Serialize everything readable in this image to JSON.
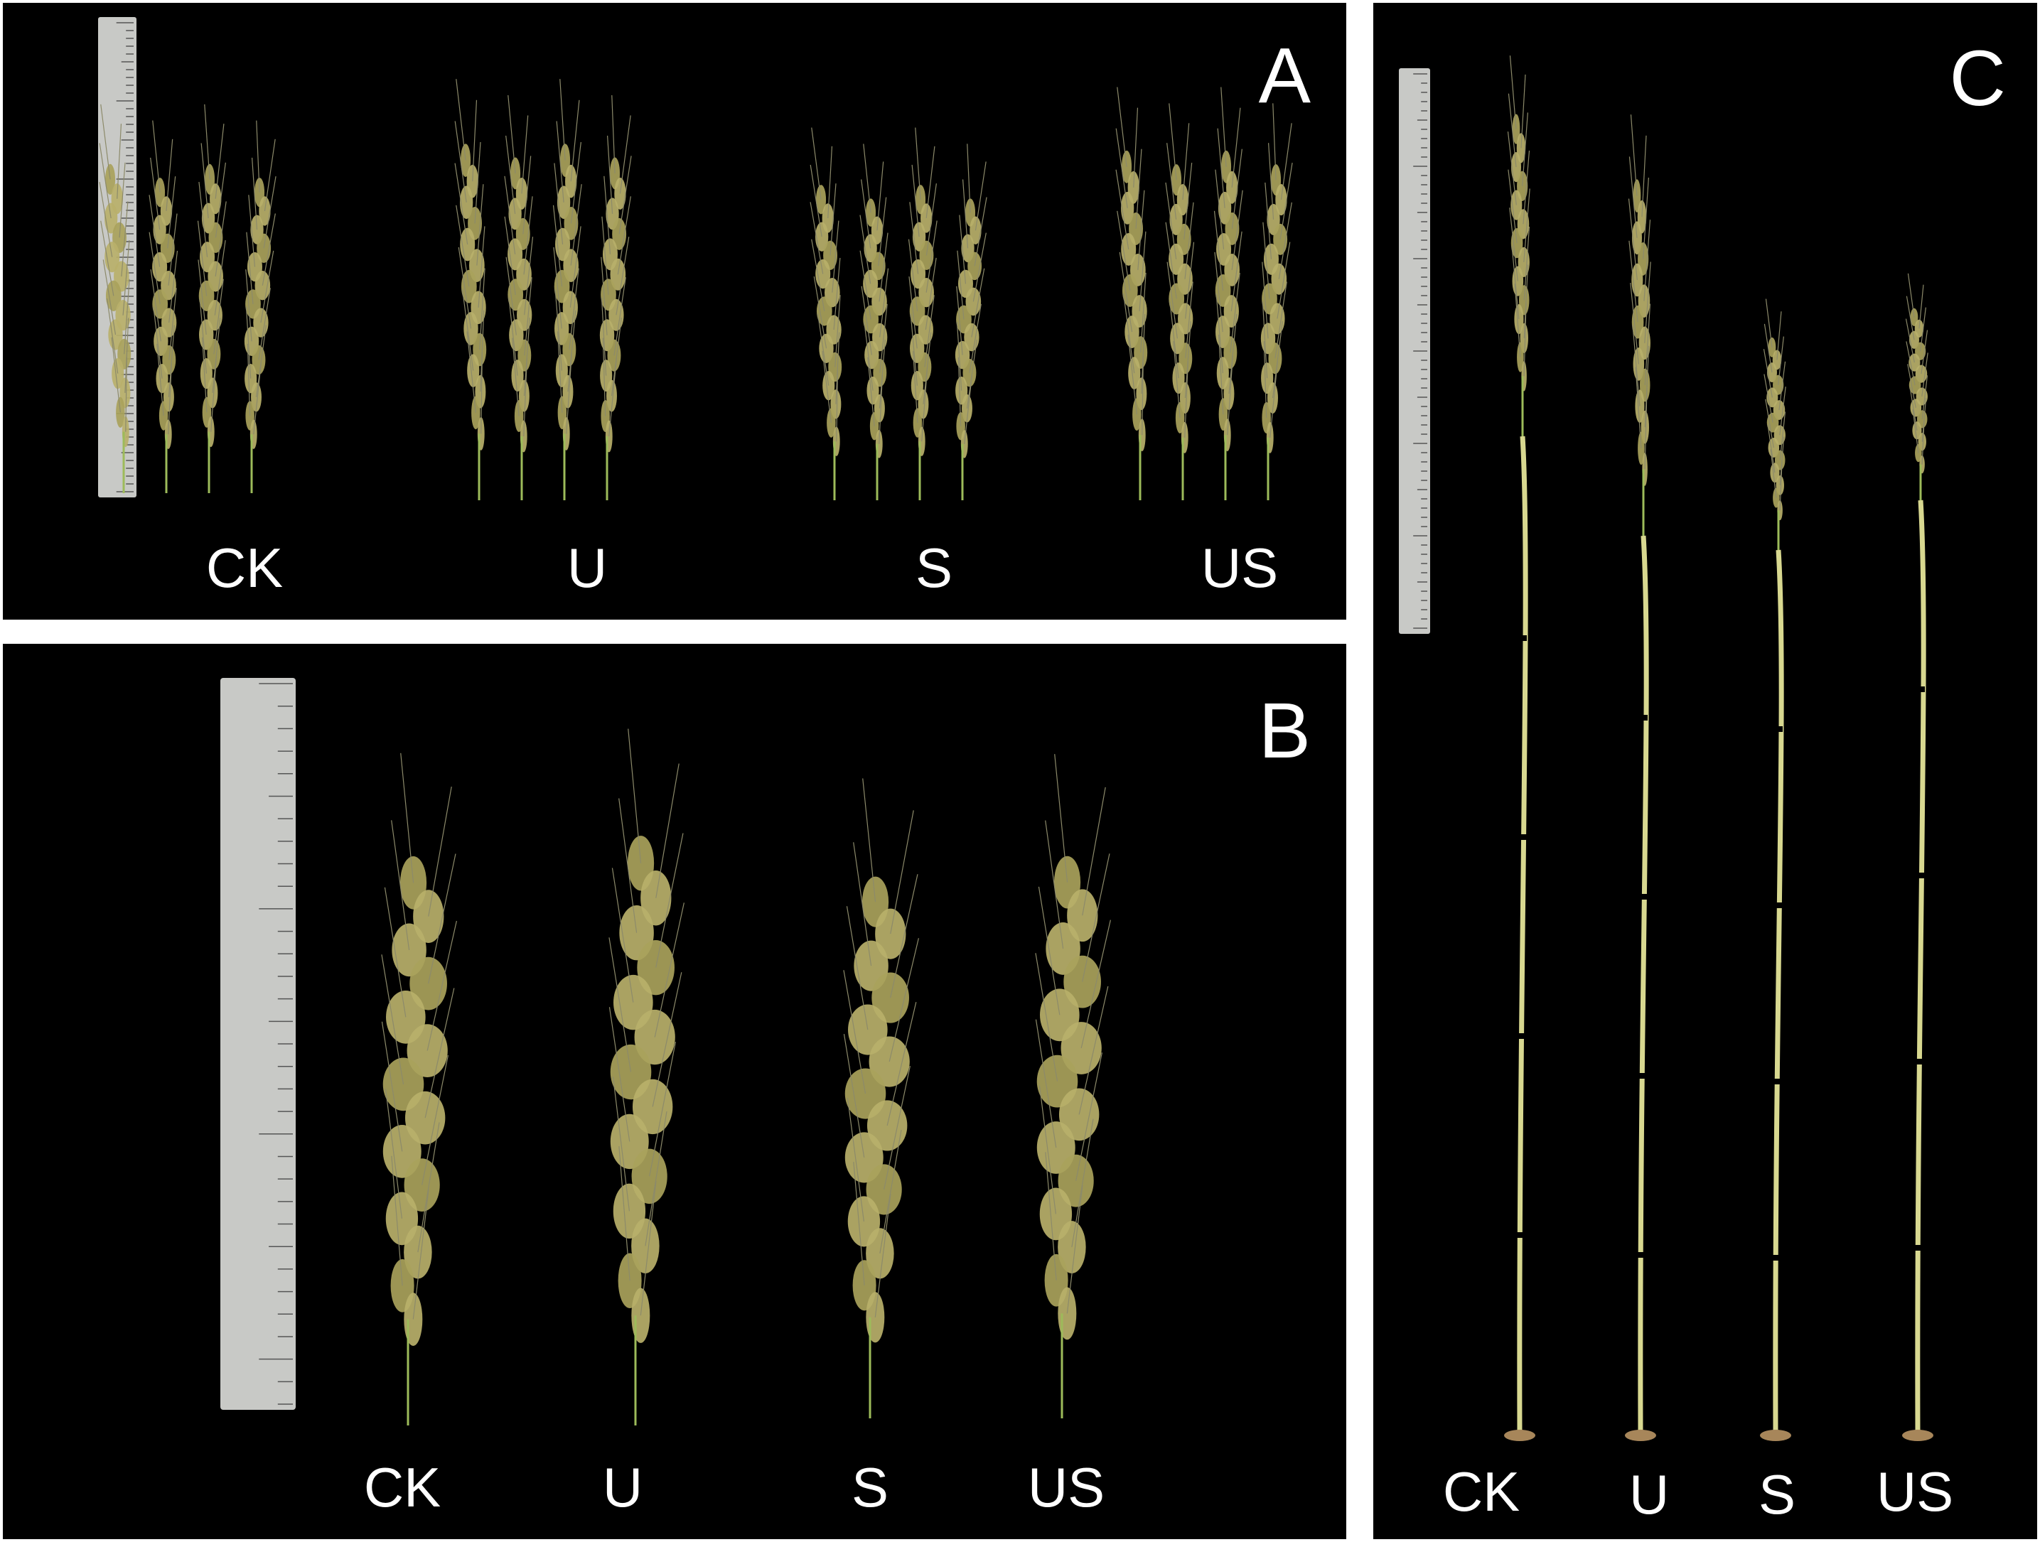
{
  "panels": [
    {
      "id": "A",
      "letter": "A",
      "labels": [
        "CK",
        "U",
        "S",
        "US"
      ]
    },
    {
      "id": "B",
      "letter": "B",
      "labels": [
        "CK",
        "U",
        "S",
        "US"
      ]
    },
    {
      "id": "C",
      "letter": "C",
      "labels": [
        "CK",
        "U",
        "S",
        "US"
      ]
    }
  ],
  "colors": {
    "background": "#000000",
    "separator": "#ffffff",
    "text": "#ffffff",
    "panicle": "#b9b06a",
    "stem": "#d8d890",
    "ruler": "#c8c9c6"
  },
  "icons": [
    "ruler-icon",
    "panicle-icon",
    "stem-icon"
  ]
}
